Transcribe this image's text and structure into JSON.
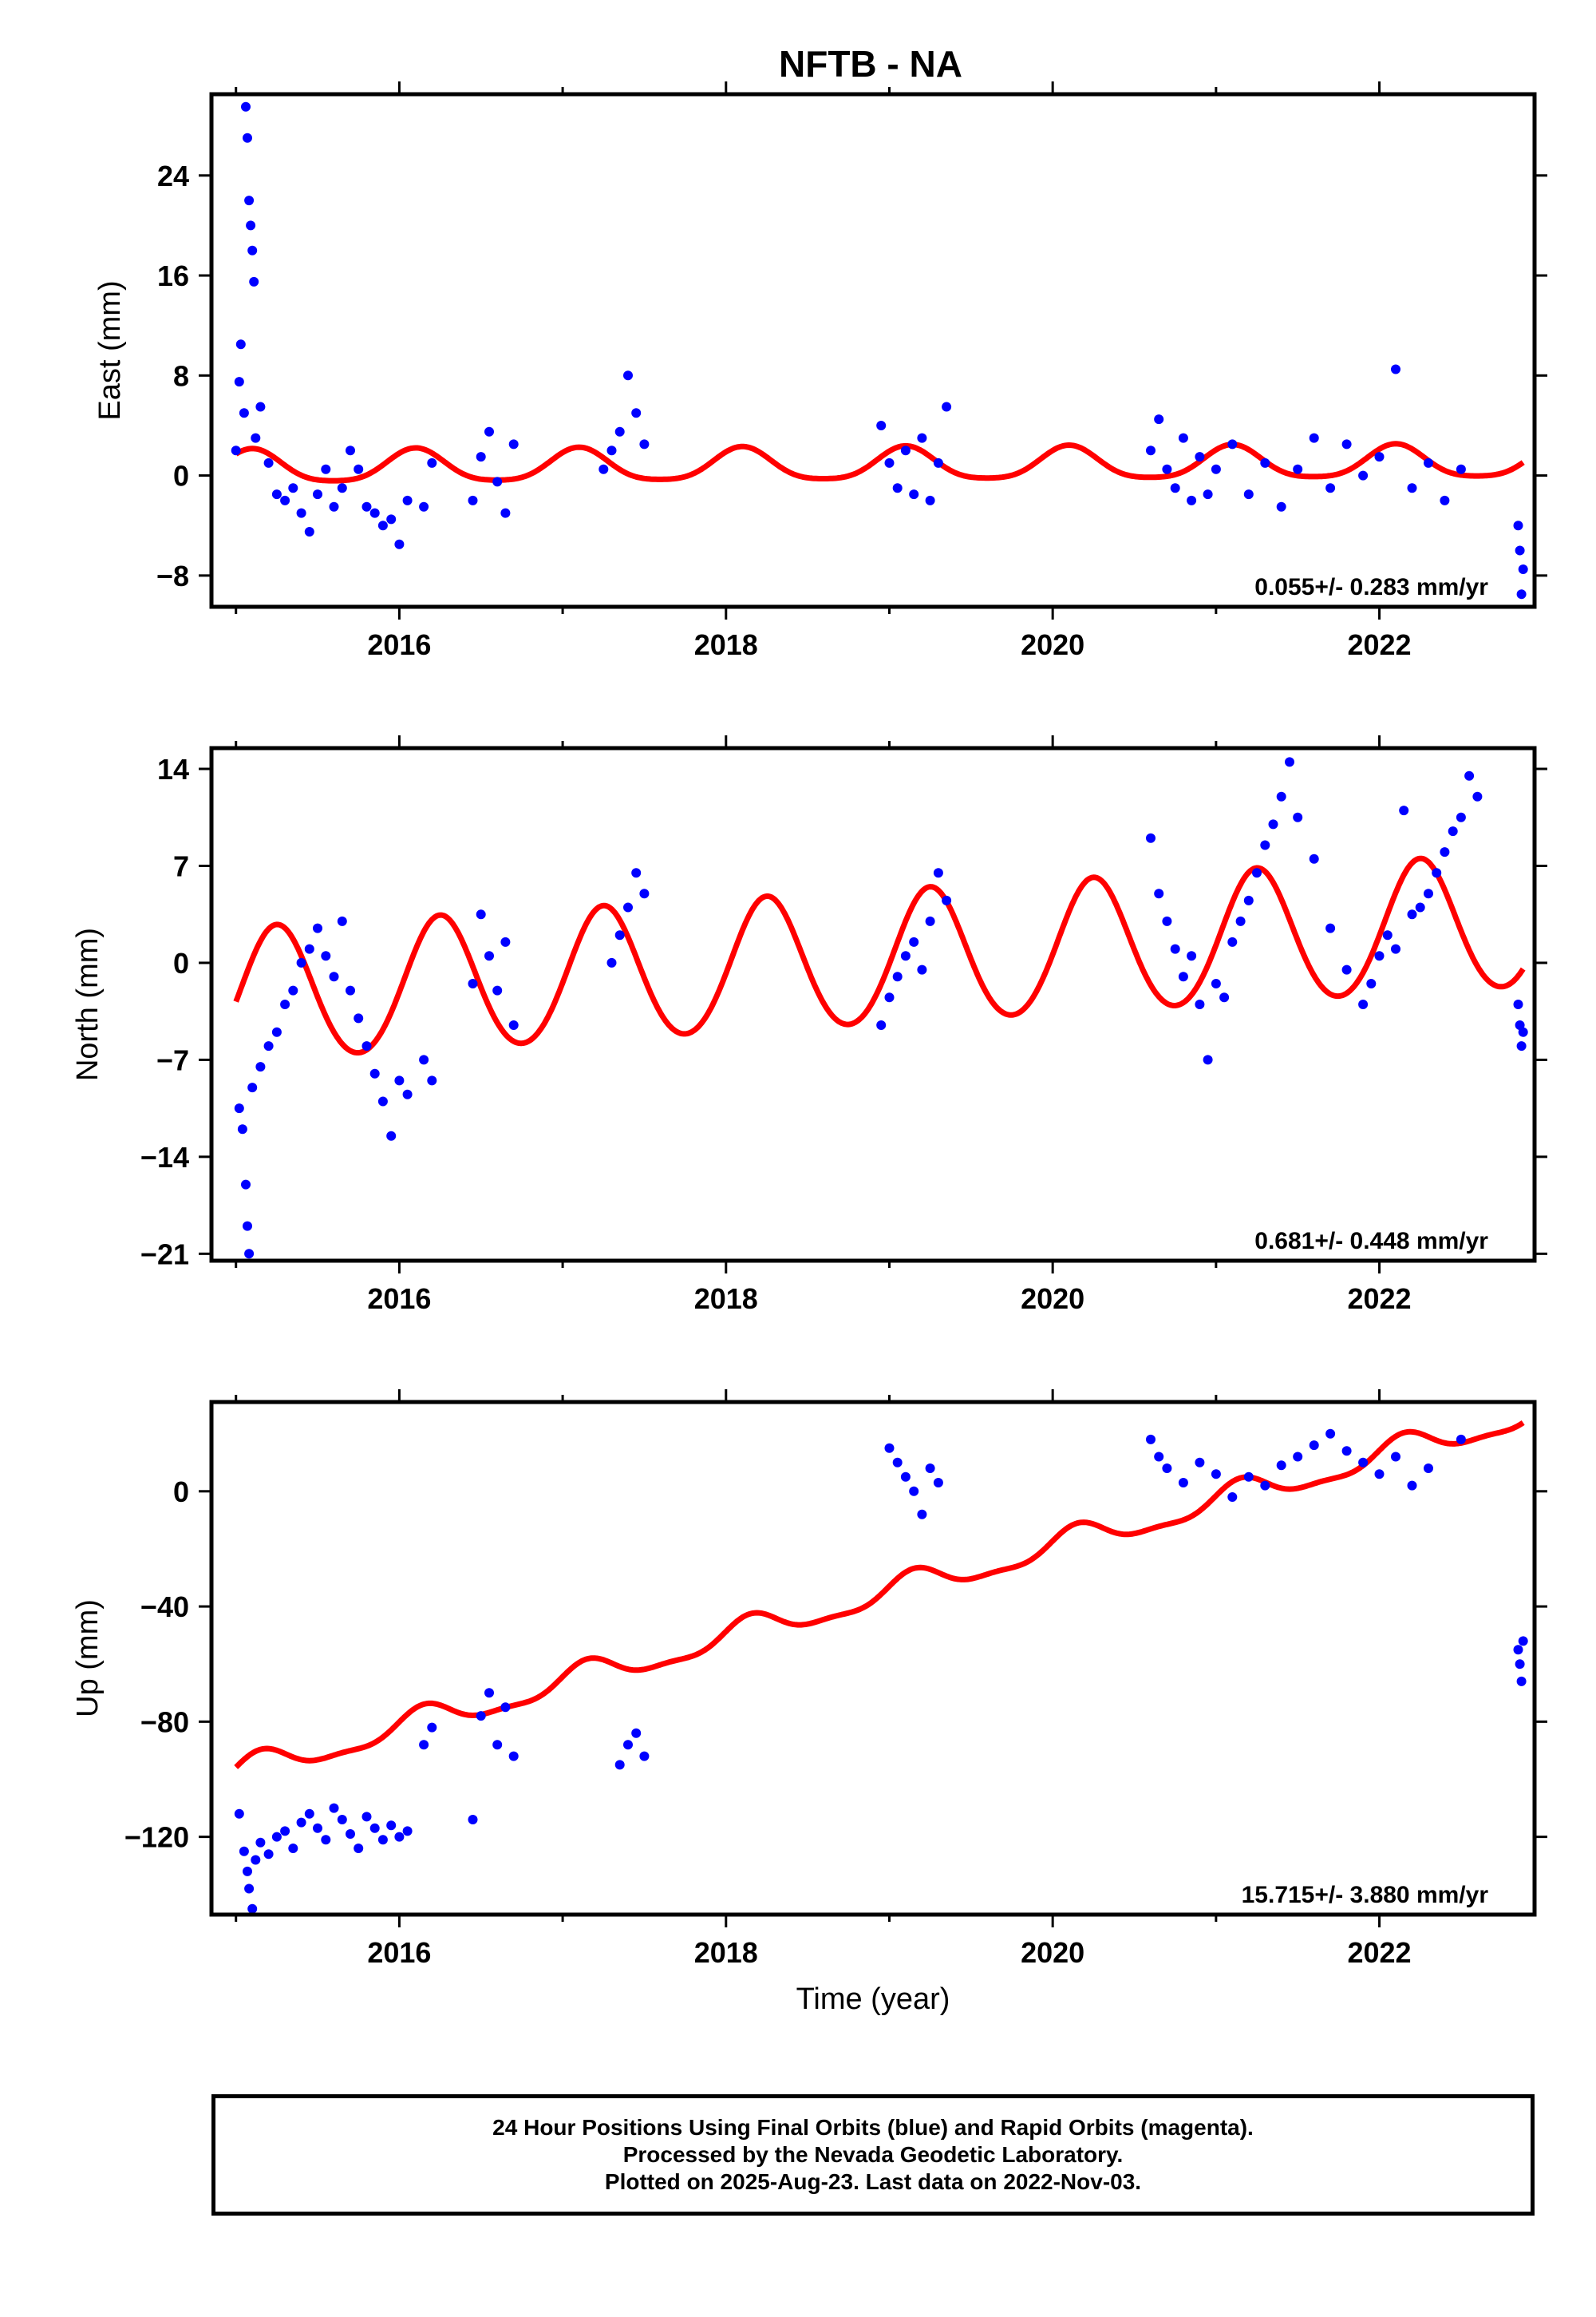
{
  "title": "NFTB - NA",
  "colors": {
    "data": "#0000ff",
    "model": "#ff0000",
    "frame": "#000000"
  },
  "footer": [
    "24 Hour Positions Using Final Orbits (blue) and Rapid Orbits (magenta).",
    "Processed by the Nevada Geodetic Laboratory.",
    "Plotted on 2025-Aug-23. Last data on 2022-Nov-03."
  ],
  "chart_data": [
    {
      "type": "scatter",
      "ylabel": "East (mm)",
      "xlabel": "",
      "xlim": [
        2014.85,
        2022.95
      ],
      "ylim": [
        -10.5,
        30.5
      ],
      "xticks": [
        2016,
        2018,
        2020,
        2022
      ],
      "xtick_labels": [
        "2016",
        "2018",
        "2020",
        "2022"
      ],
      "yticks": [
        -8,
        0,
        8,
        16,
        24
      ],
      "ytick_labels": [
        "−8",
        "0",
        "8",
        "16",
        "24"
      ],
      "rate_text": "0.055+/- 0.283 mm/yr",
      "series": [
        {
          "kind": "points",
          "points": [
            [
              2015.0,
              2.0
            ],
            [
              2015.02,
              7.5
            ],
            [
              2015.03,
              10.5
            ],
            [
              2015.05,
              5.0
            ],
            [
              2015.06,
              29.5
            ],
            [
              2015.07,
              27.0
            ],
            [
              2015.08,
              22.0
            ],
            [
              2015.09,
              20.0
            ],
            [
              2015.1,
              18.0
            ],
            [
              2015.11,
              15.5
            ],
            [
              2015.12,
              3.0
            ],
            [
              2015.15,
              5.5
            ],
            [
              2015.2,
              1.0
            ],
            [
              2015.25,
              -1.5
            ],
            [
              2015.3,
              -2.0
            ],
            [
              2015.35,
              -1.0
            ],
            [
              2015.4,
              -3.0
            ],
            [
              2015.45,
              -4.5
            ],
            [
              2015.5,
              -1.5
            ],
            [
              2015.55,
              0.5
            ],
            [
              2015.6,
              -2.5
            ],
            [
              2015.65,
              -1.0
            ],
            [
              2015.7,
              2.0
            ],
            [
              2015.75,
              0.5
            ],
            [
              2015.8,
              -2.5
            ],
            [
              2015.85,
              -3.0
            ],
            [
              2015.9,
              -4.0
            ],
            [
              2015.95,
              -3.5
            ],
            [
              2016.0,
              -5.5
            ],
            [
              2016.05,
              -2.0
            ],
            [
              2016.15,
              -2.5
            ],
            [
              2016.2,
              1.0
            ],
            [
              2016.45,
              -2.0
            ],
            [
              2016.5,
              1.5
            ],
            [
              2016.55,
              3.5
            ],
            [
              2016.6,
              -0.5
            ],
            [
              2016.65,
              -3.0
            ],
            [
              2016.7,
              2.5
            ],
            [
              2017.25,
              0.5
            ],
            [
              2017.3,
              2.0
            ],
            [
              2017.35,
              3.5
            ],
            [
              2017.4,
              8.0
            ],
            [
              2017.45,
              5.0
            ],
            [
              2017.5,
              2.5
            ],
            [
              2018.95,
              4.0
            ],
            [
              2019.0,
              1.0
            ],
            [
              2019.05,
              -1.0
            ],
            [
              2019.1,
              2.0
            ],
            [
              2019.15,
              -1.5
            ],
            [
              2019.2,
              3.0
            ],
            [
              2019.25,
              -2.0
            ],
            [
              2019.3,
              1.0
            ],
            [
              2019.35,
              5.5
            ],
            [
              2020.6,
              2.0
            ],
            [
              2020.65,
              4.5
            ],
            [
              2020.7,
              0.5
            ],
            [
              2020.75,
              -1.0
            ],
            [
              2020.8,
              3.0
            ],
            [
              2020.85,
              -2.0
            ],
            [
              2020.9,
              1.5
            ],
            [
              2020.95,
              -1.5
            ],
            [
              2021.0,
              0.5
            ],
            [
              2021.1,
              2.5
            ],
            [
              2021.2,
              -1.5
            ],
            [
              2021.3,
              1.0
            ],
            [
              2021.4,
              -2.5
            ],
            [
              2021.5,
              0.5
            ],
            [
              2021.6,
              3.0
            ],
            [
              2021.7,
              -1.0
            ],
            [
              2021.8,
              2.5
            ],
            [
              2021.9,
              0.0
            ],
            [
              2022.0,
              1.5
            ],
            [
              2022.1,
              8.5
            ],
            [
              2022.2,
              -1.0
            ],
            [
              2022.3,
              1.0
            ],
            [
              2022.4,
              -2.0
            ],
            [
              2022.5,
              0.5
            ],
            [
              2022.85,
              -4.0
            ],
            [
              2022.86,
              -6.0
            ],
            [
              2022.87,
              -9.5
            ],
            [
              2022.88,
              -7.5
            ]
          ]
        },
        {
          "kind": "line",
          "linear": [
            2015.0,
            0.6,
            0.055
          ],
          "annual_amp": 1.3,
          "annual_phase": 2022.1,
          "semi_amp": 0.25
        }
      ]
    },
    {
      "type": "scatter",
      "ylabel": "North (mm)",
      "xlabel": "",
      "xlim": [
        2014.85,
        2022.95
      ],
      "ylim": [
        -21.5,
        15.5
      ],
      "xticks": [
        2016,
        2018,
        2020,
        2022
      ],
      "xtick_labels": [
        "2016",
        "2018",
        "2020",
        "2022"
      ],
      "yticks": [
        -21,
        -14,
        -7,
        0,
        7,
        14
      ],
      "ytick_labels": [
        "−21",
        "−14",
        "−7",
        "0",
        "7",
        "14"
      ],
      "rate_text": "0.681+/- 0.448 mm/yr",
      "series": [
        {
          "kind": "points",
          "points": [
            [
              2015.02,
              -10.5
            ],
            [
              2015.04,
              -12.0
            ],
            [
              2015.06,
              -16.0
            ],
            [
              2015.07,
              -19.0
            ],
            [
              2015.08,
              -21.0
            ],
            [
              2015.1,
              -9.0
            ],
            [
              2015.15,
              -7.5
            ],
            [
              2015.2,
              -6.0
            ],
            [
              2015.25,
              -5.0
            ],
            [
              2015.3,
              -3.0
            ],
            [
              2015.35,
              -2.0
            ],
            [
              2015.4,
              0.0
            ],
            [
              2015.45,
              1.0
            ],
            [
              2015.5,
              2.5
            ],
            [
              2015.55,
              0.5
            ],
            [
              2015.6,
              -1.0
            ],
            [
              2015.65,
              3.0
            ],
            [
              2015.7,
              -2.0
            ],
            [
              2015.75,
              -4.0
            ],
            [
              2015.8,
              -6.0
            ],
            [
              2015.85,
              -8.0
            ],
            [
              2015.9,
              -10.0
            ],
            [
              2015.95,
              -12.5
            ],
            [
              2016.0,
              -8.5
            ],
            [
              2016.05,
              -9.5
            ],
            [
              2016.15,
              -7.0
            ],
            [
              2016.2,
              -8.5
            ],
            [
              2016.45,
              -1.5
            ],
            [
              2016.5,
              3.5
            ],
            [
              2016.55,
              0.5
            ],
            [
              2016.6,
              -2.0
            ],
            [
              2016.65,
              1.5
            ],
            [
              2016.7,
              -4.5
            ],
            [
              2017.3,
              0.0
            ],
            [
              2017.35,
              2.0
            ],
            [
              2017.4,
              4.0
            ],
            [
              2017.45,
              6.5
            ],
            [
              2017.5,
              5.0
            ],
            [
              2018.95,
              -4.5
            ],
            [
              2019.0,
              -2.5
            ],
            [
              2019.05,
              -1.0
            ],
            [
              2019.1,
              0.5
            ],
            [
              2019.15,
              1.5
            ],
            [
              2019.2,
              -0.5
            ],
            [
              2019.25,
              3.0
            ],
            [
              2019.3,
              6.5
            ],
            [
              2019.35,
              4.5
            ],
            [
              2020.6,
              9.0
            ],
            [
              2020.65,
              5.0
            ],
            [
              2020.7,
              3.0
            ],
            [
              2020.75,
              1.0
            ],
            [
              2020.8,
              -1.0
            ],
            [
              2020.85,
              0.5
            ],
            [
              2020.9,
              -3.0
            ],
            [
              2020.95,
              -7.0
            ],
            [
              2021.0,
              -1.5
            ],
            [
              2021.05,
              -2.5
            ],
            [
              2021.1,
              1.5
            ],
            [
              2021.15,
              3.0
            ],
            [
              2021.2,
              4.5
            ],
            [
              2021.25,
              6.5
            ],
            [
              2021.3,
              8.5
            ],
            [
              2021.35,
              10.0
            ],
            [
              2021.4,
              12.0
            ],
            [
              2021.45,
              14.5
            ],
            [
              2021.5,
              10.5
            ],
            [
              2021.6,
              7.5
            ],
            [
              2021.7,
              2.5
            ],
            [
              2021.8,
              -0.5
            ],
            [
              2021.9,
              -3.0
            ],
            [
              2021.95,
              -1.5
            ],
            [
              2022.0,
              0.5
            ],
            [
              2022.05,
              2.0
            ],
            [
              2022.1,
              1.0
            ],
            [
              2022.15,
              11.0
            ],
            [
              2022.2,
              3.5
            ],
            [
              2022.25,
              4.0
            ],
            [
              2022.3,
              5.0
            ],
            [
              2022.35,
              6.5
            ],
            [
              2022.4,
              8.0
            ],
            [
              2022.45,
              9.5
            ],
            [
              2022.5,
              10.5
            ],
            [
              2022.55,
              13.5
            ],
            [
              2022.6,
              12.0
            ],
            [
              2022.85,
              -3.0
            ],
            [
              2022.86,
              -4.5
            ],
            [
              2022.87,
              -6.0
            ],
            [
              2022.88,
              -5.0
            ]
          ]
        },
        {
          "kind": "line",
          "linear": [
            2015.0,
            -2.5,
            0.681
          ],
          "annual_amp": 4.8,
          "annual_phase": 2015.25,
          "semi_amp": 0.3
        }
      ]
    },
    {
      "type": "scatter",
      "ylabel": "Up (mm)",
      "xlabel": "Time (year)",
      "xlim": [
        2014.85,
        2022.95
      ],
      "ylim": [
        -147,
        31
      ],
      "xticks": [
        2016,
        2018,
        2020,
        2022
      ],
      "xtick_labels": [
        "2016",
        "2018",
        "2020",
        "2022"
      ],
      "yticks": [
        -120,
        -80,
        -40,
        0
      ],
      "ytick_labels": [
        "−120",
        "−80",
        "−40",
        "0"
      ],
      "rate_text": "15.715+/- 3.880 mm/yr",
      "series": [
        {
          "kind": "points",
          "points": [
            [
              2015.02,
              -112
            ],
            [
              2015.05,
              -125
            ],
            [
              2015.07,
              -132
            ],
            [
              2015.08,
              -138
            ],
            [
              2015.1,
              -145
            ],
            [
              2015.12,
              -128
            ],
            [
              2015.15,
              -122
            ],
            [
              2015.2,
              -126
            ],
            [
              2015.25,
              -120
            ],
            [
              2015.3,
              -118
            ],
            [
              2015.35,
              -124
            ],
            [
              2015.4,
              -115
            ],
            [
              2015.45,
              -112
            ],
            [
              2015.5,
              -117
            ],
            [
              2015.55,
              -121
            ],
            [
              2015.6,
              -110
            ],
            [
              2015.65,
              -114
            ],
            [
              2015.7,
              -119
            ],
            [
              2015.75,
              -124
            ],
            [
              2015.8,
              -113
            ],
            [
              2015.85,
              -117
            ],
            [
              2015.9,
              -121
            ],
            [
              2015.95,
              -116
            ],
            [
              2016.0,
              -120
            ],
            [
              2016.05,
              -118
            ],
            [
              2016.15,
              -88
            ],
            [
              2016.2,
              -82
            ],
            [
              2016.45,
              -114
            ],
            [
              2016.5,
              -78
            ],
            [
              2016.55,
              -70
            ],
            [
              2016.6,
              -88
            ],
            [
              2016.65,
              -75
            ],
            [
              2016.7,
              -92
            ],
            [
              2017.35,
              -95
            ],
            [
              2017.4,
              -88
            ],
            [
              2017.45,
              -84
            ],
            [
              2017.5,
              -92
            ],
            [
              2019.0,
              15
            ],
            [
              2019.05,
              10
            ],
            [
              2019.1,
              5
            ],
            [
              2019.15,
              0
            ],
            [
              2019.2,
              -8
            ],
            [
              2019.25,
              8
            ],
            [
              2019.3,
              3
            ],
            [
              2020.6,
              18
            ],
            [
              2020.65,
              12
            ],
            [
              2020.7,
              8
            ],
            [
              2020.8,
              3
            ],
            [
              2020.9,
              10
            ],
            [
              2021.0,
              6
            ],
            [
              2021.1,
              -2
            ],
            [
              2021.2,
              5
            ],
            [
              2021.3,
              2
            ],
            [
              2021.4,
              9
            ],
            [
              2021.5,
              12
            ],
            [
              2021.6,
              16
            ],
            [
              2021.7,
              20
            ],
            [
              2021.8,
              14
            ],
            [
              2021.9,
              10
            ],
            [
              2022.0,
              6
            ],
            [
              2022.1,
              12
            ],
            [
              2022.2,
              2
            ],
            [
              2022.3,
              8
            ],
            [
              2022.5,
              18
            ],
            [
              2022.85,
              -55
            ],
            [
              2022.86,
              -60
            ],
            [
              2022.87,
              -66
            ],
            [
              2022.88,
              -52
            ]
          ]
        },
        {
          "kind": "line",
          "linear": [
            2015.0,
            -98,
            15.715
          ],
          "annual_amp": 4.5,
          "annual_phase": 2015.15,
          "semi_amp": 1.5
        }
      ]
    }
  ]
}
